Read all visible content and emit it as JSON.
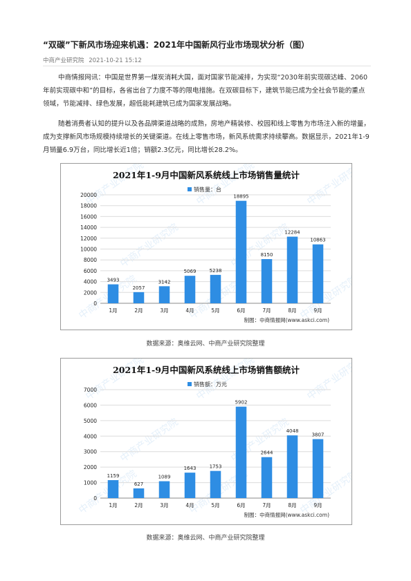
{
  "article": {
    "title": "“双碳”下新风市场迎来机遇：2021年中国新风行业市场现状分析（图）",
    "source": "中商产业研究院",
    "datetime": "2021-10-21 15:12",
    "paragraphs": [
      "中商情报网讯：中国是世界第一煤炭消耗大国，面对国家节能减排，为实现“2030年前实现碳达峰、2060年前实现碳中和”的目标，各省出台了力度不等的限电措施。在双碳目标下，建筑节能已成为全社会节能的重点领域，节能减排、绿色发展，超低能耗建筑已成为国家发展战略。",
      "随着消费者认知的提升以及各品牌渠道战略的成熟，房地产精装修、校园和线上零售为市场注入新的增量，成为支撑新风市场规模持续增长的关键渠道。在线上零售市场，新风系统需求持续攀高。数据显示，2021年1-9月销量6.9万台，同比增长近1倍；销额2.3亿元，同比增长28.2%。"
    ],
    "chart_source_1": "数据来源：奥维云网、中商产业研究院整理",
    "chart_source_2": "数据来源：奥维云网、中商产业研究院整理",
    "watermark": "中商产业研究院"
  },
  "chart_data": [
    {
      "type": "bar",
      "title": "2021年1-9月中国新风系统线上市场销售量统计",
      "legend": "销售量：台",
      "categories": [
        "1月",
        "2月",
        "3月",
        "4月",
        "5月",
        "6月",
        "7月",
        "8月",
        "9月"
      ],
      "values": [
        3493,
        2057,
        3142,
        5069,
        5238,
        18895,
        8150,
        12284,
        10863
      ],
      "yticks": [
        0,
        2000,
        4000,
        6000,
        8000,
        10000,
        12000,
        14000,
        16000,
        18000,
        20000
      ],
      "ylim": [
        0,
        20000
      ],
      "legend_position": "top-center",
      "credit": "制图：中商情报网(www.askci.com)",
      "bar_color": "#2e8de3"
    },
    {
      "type": "bar",
      "title": "2021年1-9月中国新风系统线上市场销售额统计",
      "legend": "销售额：万元",
      "categories": [
        "1月",
        "2月",
        "3月",
        "4月",
        "5月",
        "6月",
        "7月",
        "8月",
        "9月"
      ],
      "values": [
        1159,
        627,
        1089,
        1643,
        1753,
        5902,
        2644,
        4048,
        3807
      ],
      "yticks": [
        0,
        1000,
        2000,
        3000,
        4000,
        5000,
        6000,
        7000
      ],
      "ylim": [
        0,
        7000
      ],
      "legend_position": "top-center",
      "credit": "制图：中商情报网(www.askci.com)",
      "bar_color": "#2e8de3"
    }
  ]
}
